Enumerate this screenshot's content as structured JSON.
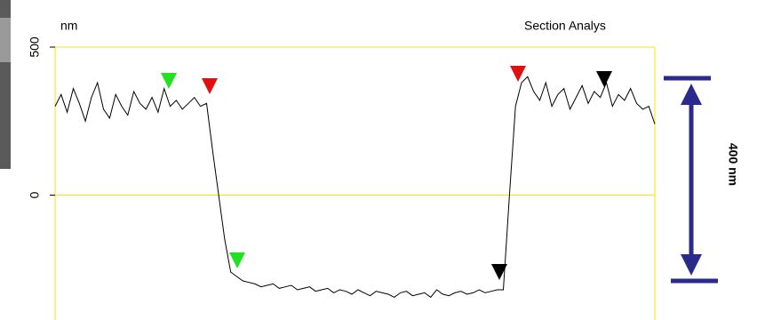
{
  "chart_data": {
    "type": "line",
    "title": "Section Analys",
    "y_unit": "nm",
    "annotation": "400 nm",
    "color": "#000000",
    "grid": true,
    "grid_color": "#f0e800",
    "ylim": [
      -425,
      500
    ],
    "yticks": [
      0,
      500
    ],
    "values": [
      300,
      340,
      280,
      360,
      310,
      250,
      330,
      380,
      290,
      260,
      340,
      300,
      270,
      350,
      310,
      290,
      330,
      280,
      360,
      300,
      320,
      290,
      310,
      330,
      300,
      310,
      150,
      0,
      -150,
      -260,
      -275,
      -290,
      -295,
      -300,
      -310,
      -305,
      -300,
      -315,
      -310,
      -305,
      -320,
      -315,
      -310,
      -325,
      -320,
      -315,
      -330,
      -320,
      -325,
      -335,
      -320,
      -330,
      -340,
      -325,
      -330,
      -335,
      -345,
      -330,
      -325,
      -340,
      -335,
      -330,
      -345,
      -320,
      -335,
      -340,
      -330,
      -325,
      -335,
      -330,
      -320,
      -330,
      -325,
      -320,
      -320,
      0,
      300,
      380,
      400,
      350,
      320,
      380,
      300,
      340,
      360,
      290,
      330,
      370,
      310,
      350,
      330,
      380,
      300,
      340,
      320,
      360,
      310,
      290,
      300,
      240
    ]
  }
}
